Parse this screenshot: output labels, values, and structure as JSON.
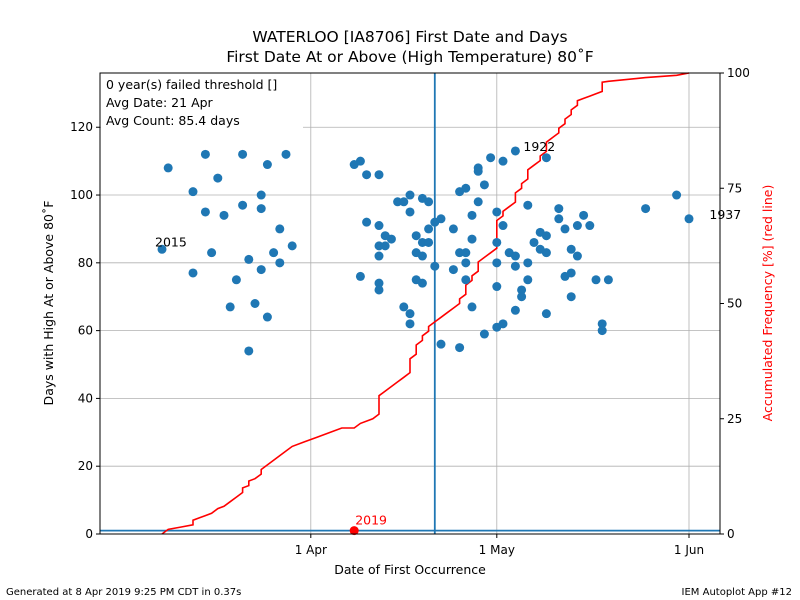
{
  "chart_data": {
    "type": "scatter",
    "title": "WATERLOO [IA8706] First Date and Days",
    "subtitle": "First Date At or Above (High Temperature) 80˚F",
    "xlabel": "Date of First Occurrence",
    "ylabel": "Days with High At or Above 80˚F",
    "y2label": "Accumulated Frequency [%] (red line)",
    "x_axis_unit": "day of year",
    "xlim": [
      57,
      157
    ],
    "ylim": [
      0,
      136
    ],
    "y2lim": [
      0,
      100
    ],
    "x_ticks": [
      {
        "doy": 91,
        "label": "1 Apr"
      },
      {
        "doy": 121,
        "label": "1 May"
      },
      {
        "doy": 152,
        "label": "1 Jun"
      }
    ],
    "y_ticks": [
      0,
      20,
      40,
      60,
      80,
      100,
      120
    ],
    "y2_ticks": [
      0,
      25,
      50,
      75,
      100
    ],
    "grid": true,
    "info_box": [
      "0 year(s) failed threshold []",
      "Avg Date: 21 Apr",
      "Avg Count: 85.4 days"
    ],
    "avg_date_doy": 111,
    "threshold_line_y": 1,
    "current_year": {
      "label": "2019",
      "doy": 98,
      "count": 1
    },
    "annotations": [
      {
        "label": "2015",
        "doy": 67,
        "count": 84
      },
      {
        "label": "1922",
        "doy": 124,
        "count": 113
      },
      {
        "label": "1937",
        "doy": 154,
        "count": 93
      }
    ],
    "points": [
      [
        67,
        84
      ],
      [
        68,
        108
      ],
      [
        72,
        101
      ],
      [
        72,
        77
      ],
      [
        74,
        112
      ],
      [
        74,
        95
      ],
      [
        75,
        83
      ],
      [
        76,
        105
      ],
      [
        77,
        94
      ],
      [
        78,
        67
      ],
      [
        79,
        75
      ],
      [
        80,
        97
      ],
      [
        80,
        112
      ],
      [
        81,
        54
      ],
      [
        81,
        81
      ],
      [
        82,
        68
      ],
      [
        83,
        100
      ],
      [
        83,
        96
      ],
      [
        83,
        78
      ],
      [
        84,
        64
      ],
      [
        84,
        109
      ],
      [
        85,
        83
      ],
      [
        86,
        80
      ],
      [
        86,
        90
      ],
      [
        87,
        112
      ],
      [
        88,
        85
      ],
      [
        98,
        109
      ],
      [
        99,
        76
      ],
      [
        99,
        110
      ],
      [
        100,
        106
      ],
      [
        100,
        92
      ],
      [
        102,
        106
      ],
      [
        102,
        91
      ],
      [
        102,
        85
      ],
      [
        102,
        82
      ],
      [
        102,
        74
      ],
      [
        102,
        72
      ],
      [
        103,
        85
      ],
      [
        103,
        88
      ],
      [
        104,
        87
      ],
      [
        105,
        98
      ],
      [
        106,
        98
      ],
      [
        106,
        67
      ],
      [
        107,
        100
      ],
      [
        107,
        95
      ],
      [
        107,
        65
      ],
      [
        107,
        62
      ],
      [
        108,
        88
      ],
      [
        108,
        83
      ],
      [
        108,
        75
      ],
      [
        109,
        86
      ],
      [
        109,
        99
      ],
      [
        109,
        82
      ],
      [
        109,
        74
      ],
      [
        110,
        98
      ],
      [
        110,
        90
      ],
      [
        110,
        86
      ],
      [
        111,
        92
      ],
      [
        111,
        79
      ],
      [
        112,
        93
      ],
      [
        112,
        56
      ],
      [
        114,
        78
      ],
      [
        114,
        90
      ],
      [
        115,
        101
      ],
      [
        115,
        83
      ],
      [
        115,
        55
      ],
      [
        116,
        102
      ],
      [
        116,
        83
      ],
      [
        116,
        80
      ],
      [
        116,
        75
      ],
      [
        117,
        94
      ],
      [
        117,
        87
      ],
      [
        117,
        67
      ],
      [
        118,
        108
      ],
      [
        118,
        107
      ],
      [
        118,
        98
      ],
      [
        119,
        103
      ],
      [
        119,
        59
      ],
      [
        120,
        111
      ],
      [
        121,
        95
      ],
      [
        121,
        86
      ],
      [
        121,
        80
      ],
      [
        121,
        73
      ],
      [
        121,
        61
      ],
      [
        122,
        110
      ],
      [
        122,
        91
      ],
      [
        122,
        62
      ],
      [
        123,
        83
      ],
      [
        124,
        113
      ],
      [
        124,
        82
      ],
      [
        124,
        79
      ],
      [
        124,
        66
      ],
      [
        125,
        72
      ],
      [
        125,
        70
      ],
      [
        126,
        97
      ],
      [
        126,
        80
      ],
      [
        126,
        75
      ],
      [
        127,
        86
      ],
      [
        128,
        89
      ],
      [
        128,
        84
      ],
      [
        129,
        111
      ],
      [
        129,
        88
      ],
      [
        129,
        83
      ],
      [
        129,
        65
      ],
      [
        131,
        96
      ],
      [
        131,
        93
      ],
      [
        132,
        90
      ],
      [
        132,
        76
      ],
      [
        133,
        84
      ],
      [
        133,
        77
      ],
      [
        133,
        70
      ],
      [
        134,
        91
      ],
      [
        134,
        82
      ],
      [
        135,
        94
      ],
      [
        136,
        91
      ],
      [
        137,
        75
      ],
      [
        138,
        62
      ],
      [
        138,
        60
      ],
      [
        139,
        75
      ],
      [
        145,
        96
      ],
      [
        150,
        100
      ],
      [
        152,
        93
      ]
    ],
    "cdf": [
      [
        67,
        0
      ],
      [
        68,
        1
      ],
      [
        70,
        1.5
      ],
      [
        72,
        2
      ],
      [
        72,
        3
      ],
      [
        73,
        3.5
      ],
      [
        74,
        4
      ],
      [
        75,
        4.5
      ],
      [
        76,
        5.5
      ],
      [
        77,
        6
      ],
      [
        78,
        7
      ],
      [
        79,
        8
      ],
      [
        80,
        9
      ],
      [
        80,
        10
      ],
      [
        81,
        10.5
      ],
      [
        81,
        11.5
      ],
      [
        82,
        12
      ],
      [
        83,
        13
      ],
      [
        83,
        14
      ],
      [
        84,
        15
      ],
      [
        85,
        16
      ],
      [
        86,
        17
      ],
      [
        87,
        18
      ],
      [
        88,
        19
      ],
      [
        90,
        20
      ],
      [
        92,
        21
      ],
      [
        94,
        22
      ],
      [
        96,
        23
      ],
      [
        98,
        23
      ],
      [
        99,
        24
      ],
      [
        101,
        25
      ],
      [
        102,
        26
      ],
      [
        102,
        27
      ],
      [
        102,
        28
      ],
      [
        102,
        29
      ],
      [
        102,
        30
      ],
      [
        103,
        31
      ],
      [
        104,
        32
      ],
      [
        105,
        33
      ],
      [
        106,
        34
      ],
      [
        107,
        35
      ],
      [
        107,
        37
      ],
      [
        107,
        38
      ],
      [
        108,
        39
      ],
      [
        108,
        41
      ],
      [
        109,
        42
      ],
      [
        109,
        43
      ],
      [
        110,
        44
      ],
      [
        110,
        45
      ],
      [
        111,
        46
      ],
      [
        112,
        47
      ],
      [
        113,
        48
      ],
      [
        114,
        49
      ],
      [
        115,
        50
      ],
      [
        115,
        51
      ],
      [
        116,
        52
      ],
      [
        116,
        53
      ],
      [
        116,
        54
      ],
      [
        117,
        55
      ],
      [
        117,
        56
      ],
      [
        118,
        57
      ],
      [
        118,
        58
      ],
      [
        118,
        59
      ],
      [
        119,
        60
      ],
      [
        120,
        61
      ],
      [
        121,
        62
      ],
      [
        121,
        64
      ],
      [
        121,
        66
      ],
      [
        121,
        68
      ],
      [
        122,
        69
      ],
      [
        122,
        70
      ],
      [
        123,
        71
      ],
      [
        124,
        72
      ],
      [
        124,
        73
      ],
      [
        124,
        74
      ],
      [
        125,
        75
      ],
      [
        125,
        76
      ],
      [
        126,
        77
      ],
      [
        126,
        78
      ],
      [
        126,
        79
      ],
      [
        127,
        80
      ],
      [
        128,
        81
      ],
      [
        128,
        82
      ],
      [
        129,
        83
      ],
      [
        129,
        84
      ],
      [
        129,
        85
      ],
      [
        130,
        86
      ],
      [
        131,
        87
      ],
      [
        131,
        88
      ],
      [
        132,
        89
      ],
      [
        132,
        90
      ],
      [
        133,
        91
      ],
      [
        133,
        92
      ],
      [
        134,
        93
      ],
      [
        134,
        94
      ],
      [
        135,
        94.5
      ],
      [
        136,
        95
      ],
      [
        137,
        95.5
      ],
      [
        138,
        96
      ],
      [
        138,
        97
      ],
      [
        138,
        98
      ],
      [
        139,
        98.2
      ],
      [
        145,
        99
      ],
      [
        150,
        99.5
      ],
      [
        152,
        100
      ]
    ]
  },
  "footer": {
    "left": "Generated at 8 Apr 2019 9:25 PM CDT in 0.37s",
    "right": "IEM Autoplot App #12"
  },
  "colors": {
    "points": "#1f77b4",
    "cdf_line": "#ff0000",
    "avg_line": "#1f77b4",
    "current_year": "#ff0000",
    "grid": "#b0b0b0"
  }
}
